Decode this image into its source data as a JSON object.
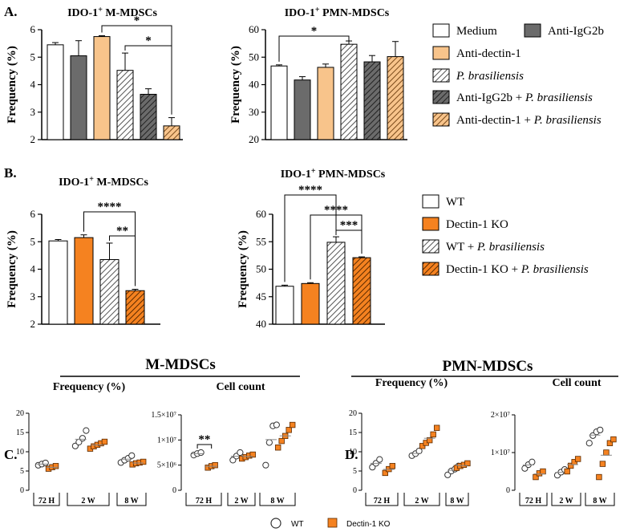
{
  "colors": {
    "white": "#ffffff",
    "gray": "#6b6b6b",
    "peach": "#f8c48b",
    "orange": "#f58220",
    "black": "#000000"
  },
  "chart_data": [
    {
      "id": "A1",
      "panel_label": "A.",
      "type": "bar",
      "title_main": "IDO-1",
      "title_sup": "+",
      "title_rest": " M-MDSCs",
      "ylabel": "Frequency (%)",
      "ylim": [
        2,
        6
      ],
      "yticks": [
        "2",
        "3",
        "4",
        "5",
        "6"
      ],
      "bars": [
        {
          "category": "Medium",
          "value": 5.45,
          "error": 0.08,
          "style": "white"
        },
        {
          "category": "Anti-IgG2b",
          "value": 5.05,
          "error": 0.55,
          "style": "gray"
        },
        {
          "category": "Anti-dectin-1",
          "value": 5.75,
          "error": 0.03,
          "style": "peach"
        },
        {
          "category": "P. brasiliensis",
          "value": 4.52,
          "error": 0.63,
          "style": "hatch-white"
        },
        {
          "category": "Anti-IgG2b + P. brasiliensis",
          "value": 3.65,
          "error": 0.2,
          "style": "hatch-gray"
        },
        {
          "category": "Anti-dectin-1 + P. brasiliensis",
          "value": 2.5,
          "error": 0.3,
          "style": "hatch-peach"
        }
      ],
      "significance": [
        {
          "from": 2,
          "to": 5,
          "label": "*"
        },
        {
          "from": 3,
          "to": 5,
          "label": "*"
        }
      ]
    },
    {
      "id": "A2",
      "type": "bar",
      "title_main": "IDO-1",
      "title_sup": "+",
      "title_rest": " PMN-MDSCs",
      "ylabel": "Frequency (%)",
      "ylim": [
        20,
        60
      ],
      "yticks": [
        "20",
        "30",
        "40",
        "50",
        "60"
      ],
      "bars": [
        {
          "category": "Medium",
          "value": 46.8,
          "error": 0.4,
          "style": "white"
        },
        {
          "category": "Anti-IgG2b",
          "value": 41.7,
          "error": 1.2,
          "style": "gray"
        },
        {
          "category": "Anti-dectin-1",
          "value": 46.3,
          "error": 1.2,
          "style": "peach"
        },
        {
          "category": "P. brasiliensis",
          "value": 54.7,
          "error": 1.2,
          "style": "hatch-white"
        },
        {
          "category": "Anti-IgG2b + P. brasiliensis",
          "value": 48.3,
          "error": 2.3,
          "style": "hatch-gray"
        },
        {
          "category": "Anti-dectin-1 + P. brasiliensis",
          "value": 50.2,
          "error": 5.5,
          "style": "hatch-peach"
        }
      ],
      "significance": [
        {
          "from": 0,
          "to": 3,
          "label": "*"
        }
      ]
    },
    {
      "id": "B1",
      "panel_label": "B.",
      "type": "bar",
      "title_main": "IDO-1",
      "title_sup": "+",
      "title_rest": " M-MDSCs",
      "ylabel": "Frequency (%)",
      "ylim": [
        2,
        6
      ],
      "yticks": [
        "2",
        "3",
        "4",
        "5",
        "6"
      ],
      "bars": [
        {
          "category": "WT",
          "value": 5.03,
          "error": 0.05,
          "style": "white"
        },
        {
          "category": "Dectin-1 KO",
          "value": 5.15,
          "error": 0.1,
          "style": "orange"
        },
        {
          "category": "WT + P. brasiliensis",
          "value": 4.35,
          "error": 0.6,
          "style": "hatch-white"
        },
        {
          "category": "Dectin-1 KO + P. brasiliensis",
          "value": 3.22,
          "error": 0.05,
          "style": "hatch-orange"
        }
      ],
      "significance": [
        {
          "from": 1,
          "to": 3,
          "label": "****"
        },
        {
          "from": 2,
          "to": 3,
          "label": "**"
        }
      ]
    },
    {
      "id": "B2",
      "type": "bar",
      "title_main": "IDO-1",
      "title_sup": "+",
      "title_rest": " PMN-MDSCs",
      "ylabel": "Frequency (%)",
      "ylim": [
        40,
        60
      ],
      "yticks": [
        "40",
        "45",
        "50",
        "55",
        "60"
      ],
      "bars": [
        {
          "category": "WT",
          "value": 46.9,
          "error": 0.2,
          "style": "white"
        },
        {
          "category": "Dectin-1 KO",
          "value": 47.4,
          "error": 0.15,
          "style": "orange"
        },
        {
          "category": "WT + P. brasiliensis",
          "value": 54.9,
          "error": 1.0,
          "style": "hatch-white"
        },
        {
          "category": "Dectin-1 KO + P. brasiliensis",
          "value": 52.1,
          "error": 0.15,
          "style": "hatch-orange"
        }
      ],
      "significance": [
        {
          "from": 0,
          "to": 2,
          "label": "****"
        },
        {
          "from": 1,
          "to": 3,
          "label": "****"
        },
        {
          "from": 2,
          "to": 3,
          "label": "***"
        }
      ]
    },
    {
      "id": "C1",
      "panel_label": "C.",
      "type": "scatter",
      "group_title": "M-MDSCs",
      "subtitle": "Frequency (%)",
      "ylim": [
        0,
        20
      ],
      "yticks": [
        "0",
        "5",
        "10",
        "15",
        "20"
      ],
      "xgroups": [
        "72 H",
        "2 W",
        "8 W"
      ],
      "wt": [
        [
          6.5,
          6.8,
          7.1
        ],
        [
          11.5,
          12.5,
          13.5,
          15.5
        ],
        [
          7.2,
          7.8,
          8.3,
          9.0
        ]
      ],
      "ko": [
        [
          5.6,
          6.0,
          6.3
        ],
        [
          10.8,
          11.4,
          11.8,
          12.2,
          12.6
        ],
        [
          6.7,
          7.0,
          7.2,
          7.4
        ]
      ],
      "significance": []
    },
    {
      "id": "C2",
      "type": "scatter",
      "subtitle": "Cell count",
      "ylim": [
        0,
        15000000
      ],
      "yticks": [
        "0",
        "5×10⁶",
        "1×10⁷",
        "1.5×10⁷"
      ],
      "xgroups": [
        "72 H",
        "2 W",
        "8 W"
      ],
      "wt": [
        [
          7000000.0,
          7300000.0,
          7500000.0
        ],
        [
          6000000.0,
          6800000.0,
          7500000.0
        ],
        [
          5000000.0,
          9500000.0,
          12800000.0,
          13000000.0
        ]
      ],
      "ko": [
        [
          4500000.0,
          4800000.0,
          5000000.0
        ],
        [
          6300000.0,
          6600000.0,
          6900000.0,
          7100000.0
        ],
        [
          8500000.0,
          9800000.0,
          10800000.0,
          12000000.0,
          13000000.0
        ]
      ],
      "significance": [
        {
          "group": 0,
          "label": "**"
        }
      ]
    },
    {
      "id": "D1",
      "panel_label": "D.",
      "type": "scatter",
      "group_title": "PMN-MDSCs",
      "subtitle": "Frequency (%)",
      "ylim": [
        0,
        20
      ],
      "yticks": [
        "0",
        "5",
        "10",
        "15",
        "20"
      ],
      "xgroups": [
        "72 H",
        "2 W",
        "8 W"
      ],
      "wt": [
        [
          6.0,
          7.0,
          8.0
        ],
        [
          9.0,
          9.5,
          10.2
        ],
        [
          4.0,
          5.0,
          5.5,
          6.3
        ]
      ],
      "ko": [
        [
          4.5,
          5.5,
          6.3
        ],
        [
          11.5,
          12.3,
          13.0,
          14.5,
          16.2
        ],
        [
          5.8,
          6.3,
          6.6,
          7.0
        ]
      ],
      "significance": []
    },
    {
      "id": "D2",
      "type": "scatter",
      "subtitle": "Cell count",
      "ylim": [
        0,
        20000000
      ],
      "yticks": [
        "0",
        "1×10⁷",
        "2×10⁷"
      ],
      "xgroups": [
        "72 H",
        "2 W",
        "8 W"
      ],
      "wt": [
        [
          5800000.0,
          6800000.0,
          7500000.0
        ],
        [
          4000000.0,
          4800000.0,
          5500000.0
        ],
        [
          12500000.0,
          14500000.0,
          15500000.0,
          16000000.0
        ]
      ],
      "ko": [
        [
          3500000.0,
          4500000.0,
          5000000.0
        ],
        [
          5000000.0,
          6500000.0,
          7500000.0,
          8300000.0
        ],
        [
          3500000.0,
          7000000.0,
          10000000.0,
          12500000.0,
          13500000.0
        ]
      ],
      "significance": []
    }
  ],
  "legend_a": [
    "Medium",
    "Anti-IgG2b",
    "Anti-dectin-1",
    "P. brasiliensis",
    "Anti-IgG2b + P. brasiliensis",
    "Anti-dectin-1 + P. brasiliensis"
  ],
  "legend_b": [
    "WT",
    "Dectin-1 KO",
    "WT + P. brasiliensis",
    "Dectin-1 KO + P. brasiliensis"
  ],
  "legend_bottom": {
    "wt": "WT",
    "ko": "Dectin-1 KO"
  }
}
